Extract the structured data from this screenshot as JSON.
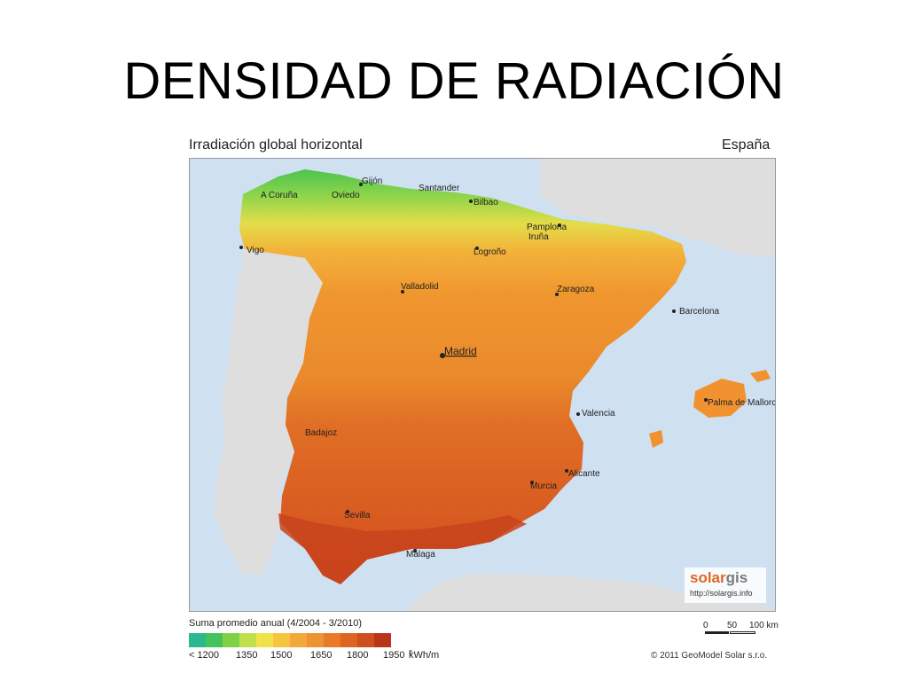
{
  "slide": {
    "title": "DENSIDAD DE RADIACIÓN"
  },
  "map": {
    "title": "Irradiación global horizontal",
    "country": "España",
    "cities": {
      "gijon": "Gijón",
      "a_coruna": "A Coruña",
      "oviedo": "Oviedo",
      "santander": "Santander",
      "bilbao": "Bilbao",
      "pamplona": "Pamplona",
      "iruna": "Iruña",
      "logrono": "Logroño",
      "vigo": "Vigo",
      "valladolid": "Valladolid",
      "zaragoza": "Zaragoza",
      "barcelona": "Barcelona",
      "madrid": "Madrid",
      "palma": "Palma de Mallorca",
      "valencia": "Valencia",
      "badajoz": "Badajoz",
      "alicante": "Alicante",
      "murcia": "Murcia",
      "sevilla": "Sevilla",
      "malaga": "Málaga"
    }
  },
  "branding": {
    "logo_part1": "solar",
    "logo_part2": "gis",
    "url": "http://solargis.info",
    "copyright": "© 2011 GeoModel Solar s.r.o."
  },
  "legend": {
    "caption": "Suma promedio anual (4/2004 - 3/2010)",
    "labels": [
      "< 1200",
      "1350",
      "1500",
      "1650",
      "1800",
      "1950"
    ],
    "unit": "kWh/m",
    "unit_sup": "2",
    "colors": [
      "#2cb78e",
      "#44c25b",
      "#7fd14a",
      "#bfe04a",
      "#f0e34a",
      "#f6c53d",
      "#f2a83a",
      "#ee9331",
      "#e87a2a",
      "#dd6423",
      "#cf4f1c",
      "#b8341a"
    ]
  },
  "scale": {
    "labels": [
      "0",
      "50",
      "100 km"
    ]
  },
  "colors": {
    "sea": "#cfe0f1",
    "portugal": "#dedede",
    "north_green": "#5fcb4c",
    "north_yellow": "#e6e04a",
    "center_orange": "#f0922f",
    "south_orange": "#e06d26",
    "south_red": "#c8431c"
  }
}
